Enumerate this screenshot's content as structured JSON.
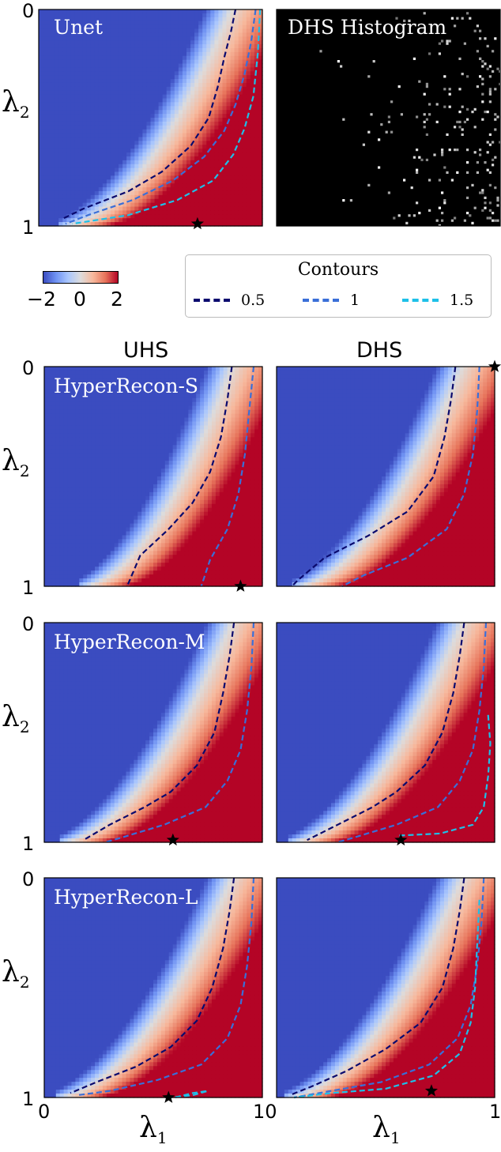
{
  "figure": {
    "column_titles": [
      "UHS",
      "DHS"
    ],
    "colorbar": {
      "ticks": [
        "−2",
        "0",
        "2"
      ],
      "range": [
        -2,
        2
      ],
      "colors": [
        "#3b4cc0",
        "#dddcdc",
        "#b40426"
      ]
    },
    "legend": {
      "title": "Contours",
      "items": [
        {
          "label": "0.5",
          "color": "#0a0a6e"
        },
        {
          "label": "1",
          "color": "#3a6fd8"
        },
        {
          "label": "1.5",
          "color": "#1ec0e8"
        }
      ]
    },
    "axes": {
      "ylabel_symbol": "λ",
      "ylabel_sub": "2",
      "xlabel_symbol": "λ",
      "xlabel_sub": "1",
      "yticks": {
        "top": "0",
        "bottom": "1"
      },
      "xticks": {
        "left": "0",
        "right": "1",
        "middle": "10"
      }
    }
  },
  "chart_data": [
    {
      "type": "heatmap",
      "title": "Unet",
      "xlabel": "",
      "ylabel": "λ2",
      "xlim": [
        0,
        1
      ],
      "ylim": [
        0,
        1
      ],
      "zrange": [
        -2,
        2
      ],
      "boundary_x_at_y0": 0.86,
      "boundary_x_at_y1": 0.1,
      "contours": [
        {
          "level": 0.5,
          "points": [
            [
              0.88,
              0.0
            ],
            [
              0.86,
              0.1
            ],
            [
              0.83,
              0.22
            ],
            [
              0.8,
              0.36
            ],
            [
              0.76,
              0.5
            ],
            [
              0.68,
              0.63
            ],
            [
              0.55,
              0.75
            ],
            [
              0.4,
              0.84
            ],
            [
              0.2,
              0.92
            ],
            [
              0.1,
              0.97
            ]
          ]
        },
        {
          "level": 1,
          "points": [
            [
              0.97,
              0.0
            ],
            [
              0.95,
              0.15
            ],
            [
              0.92,
              0.3
            ],
            [
              0.88,
              0.44
            ],
            [
              0.83,
              0.56
            ],
            [
              0.74,
              0.68
            ],
            [
              0.6,
              0.79
            ],
            [
              0.42,
              0.88
            ],
            [
              0.22,
              0.95
            ],
            [
              0.12,
              0.99
            ]
          ]
        },
        {
          "level": 1.5,
          "points": [
            [
              0.99,
              0.0
            ],
            [
              0.98,
              0.2
            ],
            [
              0.96,
              0.4
            ],
            [
              0.92,
              0.55
            ],
            [
              0.87,
              0.67
            ],
            [
              0.78,
              0.79
            ],
            [
              0.62,
              0.88
            ],
            [
              0.4,
              0.95
            ],
            [
              0.15,
              0.99
            ]
          ]
        }
      ],
      "star": [
        0.71,
        0.99
      ]
    },
    {
      "type": "heatmap",
      "title": "DHS Histogram",
      "xlim": [
        0,
        1
      ],
      "ylim": [
        0,
        1
      ],
      "background": "#000000",
      "point_color": "#dddddd",
      "density": "increases toward lower-right"
    },
    {
      "type": "heatmap",
      "title": "HyperRecon-S",
      "column": "UHS",
      "ylabel": "λ2",
      "xlim": [
        0,
        1
      ],
      "ylim": [
        0,
        1
      ],
      "zrange": [
        -2,
        2
      ],
      "boundary_x_at_y0": 0.86,
      "boundary_x_at_y1": 0.17,
      "contours": [
        {
          "level": 0.5,
          "points": [
            [
              0.86,
              0.0
            ],
            [
              0.84,
              0.15
            ],
            [
              0.81,
              0.32
            ],
            [
              0.76,
              0.48
            ],
            [
              0.68,
              0.62
            ],
            [
              0.57,
              0.74
            ],
            [
              0.44,
              0.86
            ],
            [
              0.38,
              1.0
            ]
          ]
        },
        {
          "level": 1,
          "points": [
            [
              0.96,
              0.0
            ],
            [
              0.94,
              0.2
            ],
            [
              0.92,
              0.4
            ],
            [
              0.89,
              0.58
            ],
            [
              0.84,
              0.74
            ],
            [
              0.76,
              0.88
            ],
            [
              0.72,
              1.0
            ]
          ]
        }
      ],
      "star": [
        0.9,
        1.0
      ]
    },
    {
      "type": "heatmap",
      "title": "",
      "column": "DHS",
      "xlim": [
        0,
        1
      ],
      "ylim": [
        0,
        1
      ],
      "zrange": [
        -2,
        2
      ],
      "boundary_x_at_y0": 0.85,
      "boundary_x_at_y1": 0.08,
      "contours": [
        {
          "level": 0.5,
          "points": [
            [
              0.82,
              0.0
            ],
            [
              0.8,
              0.15
            ],
            [
              0.77,
              0.32
            ],
            [
              0.72,
              0.5
            ],
            [
              0.6,
              0.66
            ],
            [
              0.42,
              0.77
            ],
            [
              0.22,
              0.87
            ],
            [
              0.1,
              0.97
            ],
            [
              0.07,
              1.0
            ]
          ]
        },
        {
          "level": 1,
          "points": [
            [
              0.93,
              0.0
            ],
            [
              0.92,
              0.2
            ],
            [
              0.9,
              0.4
            ],
            [
              0.86,
              0.58
            ],
            [
              0.78,
              0.74
            ],
            [
              0.6,
              0.87
            ],
            [
              0.4,
              0.95
            ],
            [
              0.3,
              1.0
            ]
          ]
        }
      ],
      "star": [
        1.0,
        0.0
      ]
    },
    {
      "type": "heatmap",
      "title": "HyperRecon-M",
      "column": "UHS",
      "ylabel": "λ2",
      "xlim": [
        0,
        1
      ],
      "ylim": [
        0,
        1
      ],
      "zrange": [
        -2,
        2
      ],
      "boundary_x_at_y0": 0.86,
      "boundary_x_at_y1": 0.07,
      "contours": [
        {
          "level": 0.5,
          "points": [
            [
              0.87,
              0.0
            ],
            [
              0.85,
              0.15
            ],
            [
              0.82,
              0.32
            ],
            [
              0.78,
              0.5
            ],
            [
              0.7,
              0.65
            ],
            [
              0.58,
              0.77
            ],
            [
              0.46,
              0.84
            ],
            [
              0.3,
              0.92
            ],
            [
              0.18,
              0.99
            ]
          ]
        },
        {
          "level": 1,
          "points": [
            [
              0.96,
              0.0
            ],
            [
              0.95,
              0.2
            ],
            [
              0.93,
              0.4
            ],
            [
              0.9,
              0.58
            ],
            [
              0.84,
              0.72
            ],
            [
              0.74,
              0.84
            ],
            [
              0.55,
              0.92
            ],
            [
              0.35,
              0.98
            ],
            [
              0.28,
              1.0
            ]
          ]
        }
      ],
      "star": [
        0.59,
        0.99
      ]
    },
    {
      "type": "heatmap",
      "title": "",
      "column": "DHS",
      "xlim": [
        0,
        1
      ],
      "ylim": [
        0,
        1
      ],
      "zrange": [
        -2,
        2
      ],
      "boundary_x_at_y0": 0.85,
      "boundary_x_at_y1": 0.06,
      "contours": [
        {
          "level": 0.5,
          "points": [
            [
              0.86,
              0.0
            ],
            [
              0.84,
              0.15
            ],
            [
              0.81,
              0.32
            ],
            [
              0.76,
              0.5
            ],
            [
              0.68,
              0.65
            ],
            [
              0.55,
              0.77
            ],
            [
              0.44,
              0.84
            ],
            [
              0.28,
              0.92
            ],
            [
              0.14,
              0.99
            ]
          ]
        },
        {
          "level": 1,
          "points": [
            [
              0.96,
              0.0
            ],
            [
              0.95,
              0.2
            ],
            [
              0.93,
              0.4
            ],
            [
              0.9,
              0.58
            ],
            [
              0.84,
              0.72
            ],
            [
              0.74,
              0.84
            ],
            [
              0.55,
              0.92
            ],
            [
              0.35,
              0.98
            ],
            [
              0.28,
              1.0
            ]
          ]
        },
        {
          "level": 1.5,
          "points": [
            [
              0.97,
              0.42
            ],
            [
              0.98,
              0.55
            ],
            [
              0.97,
              0.7
            ],
            [
              0.95,
              0.84
            ],
            [
              0.9,
              0.92
            ],
            [
              0.75,
              0.96
            ],
            [
              0.55,
              0.97
            ]
          ]
        }
      ],
      "star": [
        0.57,
        0.99
      ]
    },
    {
      "type": "heatmap",
      "title": "HyperRecon-L",
      "column": "UHS",
      "ylabel": "λ2",
      "xlabel": "λ1",
      "xlim": [
        0,
        1
      ],
      "ylim": [
        0,
        1
      ],
      "zrange": [
        -2,
        2
      ],
      "boundary_x_at_y0": 0.86,
      "boundary_x_at_y1": 0.05,
      "contours": [
        {
          "level": 0.5,
          "points": [
            [
              0.87,
              0.0
            ],
            [
              0.85,
              0.15
            ],
            [
              0.82,
              0.32
            ],
            [
              0.77,
              0.5
            ],
            [
              0.7,
              0.65
            ],
            [
              0.58,
              0.77
            ],
            [
              0.42,
              0.86
            ],
            [
              0.24,
              0.93
            ],
            [
              0.12,
              0.98
            ]
          ]
        },
        {
          "level": 1,
          "points": [
            [
              0.96,
              0.0
            ],
            [
              0.95,
              0.2
            ],
            [
              0.93,
              0.4
            ],
            [
              0.9,
              0.58
            ],
            [
              0.84,
              0.73
            ],
            [
              0.72,
              0.85
            ],
            [
              0.52,
              0.92
            ],
            [
              0.3,
              0.97
            ],
            [
              0.15,
              0.99
            ]
          ]
        },
        {
          "level": 1.5,
          "points": [
            [
              0.6,
              1.0
            ],
            [
              0.68,
              0.98
            ],
            [
              0.75,
              0.97
            ],
            [
              0.68,
              0.99
            ],
            [
              0.58,
              1.0
            ]
          ]
        }
      ],
      "star": [
        0.57,
        1.0
      ]
    },
    {
      "type": "heatmap",
      "title": "",
      "column": "DHS",
      "xlabel": "λ1",
      "xlim": [
        0,
        1
      ],
      "ylim": [
        0,
        1
      ],
      "zrange": [
        -2,
        2
      ],
      "boundary_x_at_y0": 0.85,
      "boundary_x_at_y1": 0.04,
      "contours": [
        {
          "level": 0.5,
          "points": [
            [
              0.86,
              0.0
            ],
            [
              0.84,
              0.15
            ],
            [
              0.81,
              0.32
            ],
            [
              0.76,
              0.5
            ],
            [
              0.66,
              0.66
            ],
            [
              0.5,
              0.78
            ],
            [
              0.32,
              0.88
            ],
            [
              0.16,
              0.95
            ],
            [
              0.06,
              0.99
            ]
          ]
        },
        {
          "level": 1,
          "points": [
            [
              0.95,
              0.0
            ],
            [
              0.94,
              0.2
            ],
            [
              0.92,
              0.4
            ],
            [
              0.89,
              0.58
            ],
            [
              0.83,
              0.73
            ],
            [
              0.7,
              0.85
            ],
            [
              0.48,
              0.93
            ],
            [
              0.25,
              0.97
            ],
            [
              0.08,
              1.0
            ]
          ]
        },
        {
          "level": 1.5,
          "points": [
            [
              0.93,
              0.1
            ],
            [
              0.92,
              0.3
            ],
            [
              0.91,
              0.5
            ],
            [
              0.89,
              0.66
            ],
            [
              0.84,
              0.8
            ],
            [
              0.72,
              0.9
            ],
            [
              0.5,
              0.96
            ],
            [
              0.25,
              0.98
            ],
            [
              0.08,
              1.0
            ]
          ]
        }
      ],
      "star": [
        0.71,
        0.97
      ]
    }
  ]
}
